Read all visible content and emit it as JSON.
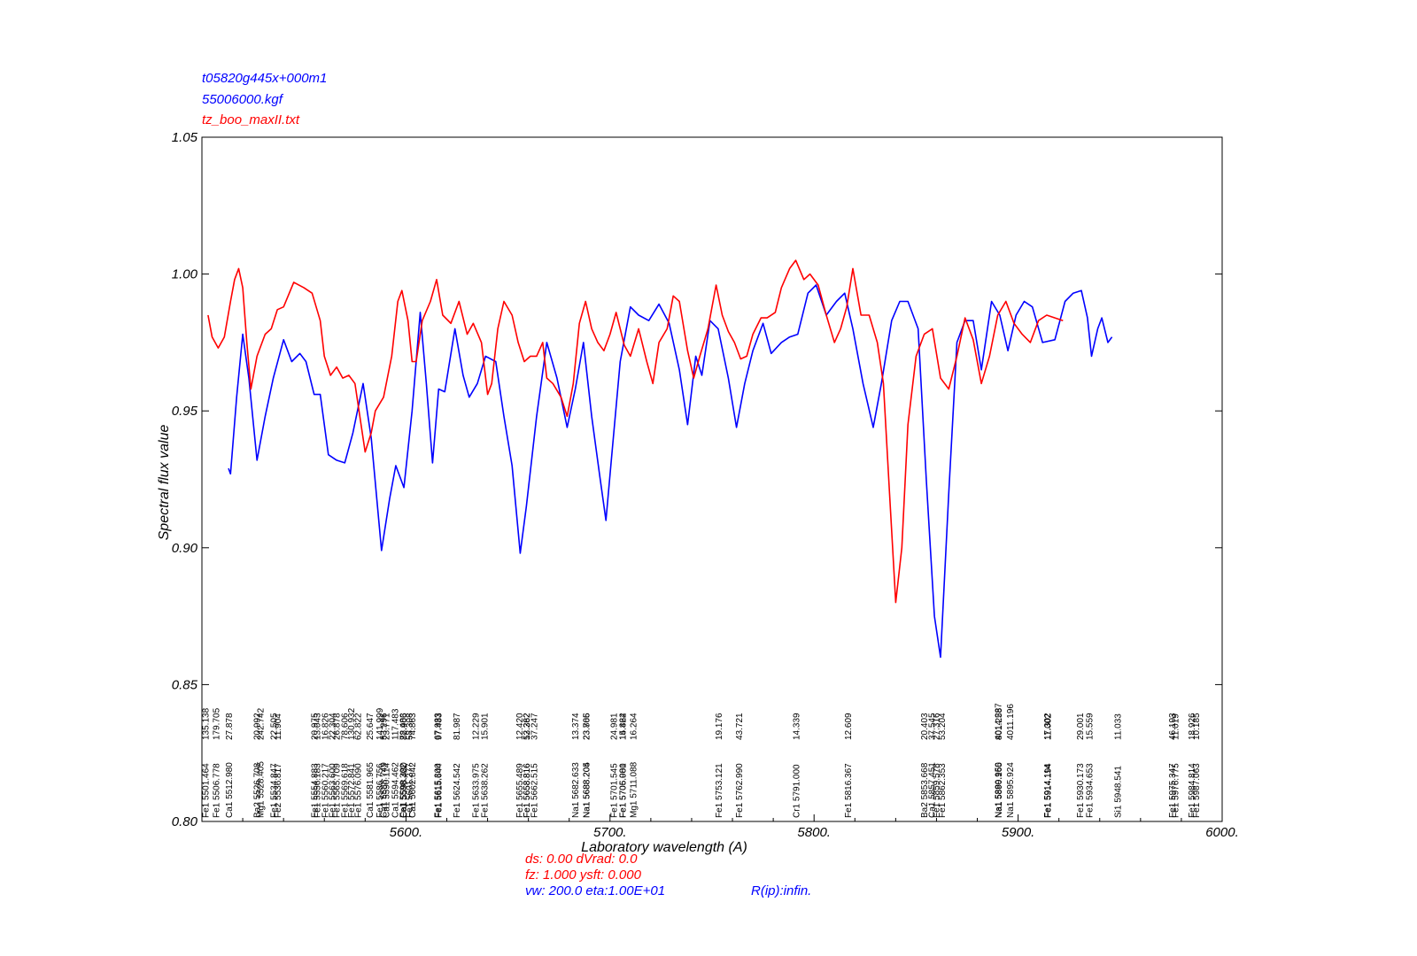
{
  "legend": {
    "model_name": "t05820g445x+000m1",
    "model_file": "55006000.kgf",
    "observed_file": "tz_boo_maxII.txt"
  },
  "colors": {
    "model": "#0000ff",
    "observed": "#ff0000",
    "axis": "#000000",
    "lines": "#000000"
  },
  "footer": {
    "line1": "ds:  0.00 dVrad:   0.0",
    "line2": "fz: 1.000  ysft: 0.000",
    "line3": "vw: 200.0 eta:1.00E+01",
    "resolution": "R(ip):infin."
  },
  "chart_data": {
    "type": "line",
    "xlabel": "Laboratory wavelength (A)",
    "ylabel": "Spectral flux value",
    "xlim": [
      5500,
      6000
    ],
    "ylim": [
      0.8,
      1.05
    ],
    "x_ticks": [
      5600,
      5700,
      5800,
      5900,
      6000
    ],
    "x_tick_labels": [
      "5600.",
      "5700.",
      "5800.",
      "5900.",
      "6000."
    ],
    "y_ticks": [
      0.8,
      0.85,
      0.9,
      0.95,
      1.0,
      1.05
    ],
    "y_tick_labels": [
      "0.80",
      "0.85",
      "0.90",
      "0.95",
      "1.00",
      "1.05"
    ],
    "series": [
      {
        "name": "t05820g445x+000m1",
        "color": "#0000ff",
        "points": [
          [
            5513,
            0.929
          ],
          [
            5514,
            0.927
          ],
          [
            5517,
            0.955
          ],
          [
            5520,
            0.978
          ],
          [
            5523,
            0.962
          ],
          [
            5527,
            0.932
          ],
          [
            5531,
            0.948
          ],
          [
            5535,
            0.962
          ],
          [
            5540,
            0.976
          ],
          [
            5544,
            0.968
          ],
          [
            5548,
            0.971
          ],
          [
            5551,
            0.968
          ],
          [
            5555,
            0.956
          ],
          [
            5558,
            0.956
          ],
          [
            5562,
            0.934
          ],
          [
            5566,
            0.932
          ],
          [
            5570,
            0.931
          ],
          [
            5574,
            0.942
          ],
          [
            5579,
            0.96
          ],
          [
            5583,
            0.94
          ],
          [
            5588,
            0.899
          ],
          [
            5592,
            0.918
          ],
          [
            5595,
            0.93
          ],
          [
            5599,
            0.922
          ],
          [
            5603,
            0.95
          ],
          [
            5607,
            0.986
          ],
          [
            5610,
            0.96
          ],
          [
            5613,
            0.931
          ],
          [
            5616,
            0.958
          ],
          [
            5619,
            0.957
          ],
          [
            5624,
            0.98
          ],
          [
            5628,
            0.963
          ],
          [
            5631,
            0.955
          ],
          [
            5635,
            0.96
          ],
          [
            5639,
            0.97
          ],
          [
            5644,
            0.968
          ],
          [
            5648,
            0.948
          ],
          [
            5652,
            0.93
          ],
          [
            5656,
            0.898
          ],
          [
            5659,
            0.915
          ],
          [
            5664,
            0.948
          ],
          [
            5669,
            0.975
          ],
          [
            5674,
            0.962
          ],
          [
            5679,
            0.944
          ],
          [
            5683,
            0.958
          ],
          [
            5687,
            0.975
          ],
          [
            5691,
            0.948
          ],
          [
            5695,
            0.926
          ],
          [
            5698,
            0.91
          ],
          [
            5701,
            0.935
          ],
          [
            5705,
            0.968
          ],
          [
            5710,
            0.988
          ],
          [
            5714,
            0.985
          ],
          [
            5719,
            0.983
          ],
          [
            5724,
            0.989
          ],
          [
            5729,
            0.982
          ],
          [
            5734,
            0.965
          ],
          [
            5738,
            0.945
          ],
          [
            5742,
            0.97
          ],
          [
            5745,
            0.963
          ],
          [
            5749,
            0.983
          ],
          [
            5753,
            0.98
          ],
          [
            5758,
            0.962
          ],
          [
            5762,
            0.944
          ],
          [
            5766,
            0.96
          ],
          [
            5770,
            0.972
          ],
          [
            5775,
            0.982
          ],
          [
            5779,
            0.971
          ],
          [
            5784,
            0.975
          ],
          [
            5788,
            0.977
          ],
          [
            5792,
            0.978
          ],
          [
            5797,
            0.993
          ],
          [
            5801,
            0.996
          ],
          [
            5806,
            0.985
          ],
          [
            5811,
            0.99
          ],
          [
            5815,
            0.993
          ],
          [
            5819,
            0.98
          ],
          [
            5824,
            0.96
          ],
          [
            5829,
            0.944
          ],
          [
            5833,
            0.96
          ],
          [
            5838,
            0.983
          ],
          [
            5842,
            0.99
          ],
          [
            5846,
            0.99
          ],
          [
            5851,
            0.98
          ],
          [
            5855,
            0.925
          ],
          [
            5859,
            0.875
          ],
          [
            5862,
            0.86
          ],
          [
            5866,
            0.92
          ],
          [
            5870,
            0.975
          ],
          [
            5874,
            0.983
          ],
          [
            5878,
            0.983
          ],
          [
            5882,
            0.965
          ],
          [
            5887,
            0.99
          ],
          [
            5891,
            0.985
          ],
          [
            5895,
            0.972
          ],
          [
            5899,
            0.985
          ],
          [
            5903,
            0.99
          ],
          [
            5907,
            0.988
          ],
          [
            5912,
            0.975
          ],
          [
            5918,
            0.976
          ],
          [
            5923,
            0.99
          ],
          [
            5927,
            0.993
          ],
          [
            5931,
            0.994
          ],
          [
            5934,
            0.984
          ],
          [
            5936,
            0.97
          ],
          [
            5939,
            0.98
          ],
          [
            5941,
            0.984
          ],
          [
            5944,
            0.975
          ],
          [
            5946,
            0.977
          ]
        ]
      },
      {
        "name": "tz_boo_maxII.txt",
        "color": "#ff0000",
        "points": [
          [
            5503,
            0.985
          ],
          [
            5505,
            0.977
          ],
          [
            5508,
            0.973
          ],
          [
            5511,
            0.977
          ],
          [
            5514,
            0.99
          ],
          [
            5516,
            0.998
          ],
          [
            5518,
            1.002
          ],
          [
            5520,
            0.995
          ],
          [
            5522,
            0.975
          ],
          [
            5524,
            0.958
          ],
          [
            5527,
            0.97
          ],
          [
            5531,
            0.978
          ],
          [
            5534,
            0.98
          ],
          [
            5537,
            0.987
          ],
          [
            5540,
            0.988
          ],
          [
            5545,
            0.997
          ],
          [
            5550,
            0.995
          ],
          [
            5554,
            0.993
          ],
          [
            5558,
            0.983
          ],
          [
            5560,
            0.97
          ],
          [
            5563,
            0.963
          ],
          [
            5566,
            0.966
          ],
          [
            5569,
            0.962
          ],
          [
            5572,
            0.963
          ],
          [
            5575,
            0.96
          ],
          [
            5578,
            0.945
          ],
          [
            5580,
            0.935
          ],
          [
            5583,
            0.942
          ],
          [
            5585,
            0.95
          ],
          [
            5589,
            0.955
          ],
          [
            5593,
            0.97
          ],
          [
            5596,
            0.99
          ],
          [
            5598,
            0.994
          ],
          [
            5601,
            0.983
          ],
          [
            5603,
            0.968
          ],
          [
            5605,
            0.968
          ],
          [
            5608,
            0.983
          ],
          [
            5612,
            0.99
          ],
          [
            5615,
            0.998
          ],
          [
            5618,
            0.985
          ],
          [
            5622,
            0.982
          ],
          [
            5626,
            0.99
          ],
          [
            5630,
            0.978
          ],
          [
            5633,
            0.982
          ],
          [
            5637,
            0.975
          ],
          [
            5640,
            0.956
          ],
          [
            5642,
            0.96
          ],
          [
            5645,
            0.98
          ],
          [
            5648,
            0.99
          ],
          [
            5652,
            0.985
          ],
          [
            5655,
            0.975
          ],
          [
            5658,
            0.968
          ],
          [
            5661,
            0.97
          ],
          [
            5664,
            0.97
          ],
          [
            5667,
            0.975
          ],
          [
            5669,
            0.962
          ],
          [
            5672,
            0.96
          ],
          [
            5676,
            0.955
          ],
          [
            5679,
            0.948
          ],
          [
            5682,
            0.96
          ],
          [
            5685,
            0.982
          ],
          [
            5688,
            0.99
          ],
          [
            5691,
            0.98
          ],
          [
            5694,
            0.975
          ],
          [
            5697,
            0.972
          ],
          [
            5700,
            0.978
          ],
          [
            5703,
            0.986
          ],
          [
            5707,
            0.974
          ],
          [
            5710,
            0.97
          ],
          [
            5714,
            0.98
          ],
          [
            5718,
            0.968
          ],
          [
            5721,
            0.96
          ],
          [
            5724,
            0.975
          ],
          [
            5728,
            0.98
          ],
          [
            5731,
            0.992
          ],
          [
            5734,
            0.99
          ],
          [
            5738,
            0.972
          ],
          [
            5741,
            0.962
          ],
          [
            5744,
            0.97
          ],
          [
            5748,
            0.98
          ],
          [
            5752,
            0.996
          ],
          [
            5755,
            0.985
          ],
          [
            5758,
            0.979
          ],
          [
            5761,
            0.975
          ],
          [
            5764,
            0.969
          ],
          [
            5767,
            0.97
          ],
          [
            5770,
            0.978
          ],
          [
            5774,
            0.984
          ],
          [
            5777,
            0.984
          ],
          [
            5781,
            0.986
          ],
          [
            5784,
            0.995
          ],
          [
            5788,
            1.002
          ],
          [
            5791,
            1.005
          ],
          [
            5795,
            0.998
          ],
          [
            5798,
            1.0
          ],
          [
            5802,
            0.996
          ],
          [
            5806,
            0.985
          ],
          [
            5810,
            0.975
          ],
          [
            5813,
            0.98
          ],
          [
            5816,
            0.988
          ],
          [
            5819,
            1.002
          ],
          [
            5823,
            0.985
          ],
          [
            5827,
            0.985
          ],
          [
            5831,
            0.975
          ],
          [
            5834,
            0.96
          ],
          [
            5837,
            0.92
          ],
          [
            5840,
            0.88
          ],
          [
            5843,
            0.9
          ],
          [
            5846,
            0.945
          ],
          [
            5850,
            0.97
          ],
          [
            5854,
            0.978
          ],
          [
            5858,
            0.98
          ],
          [
            5862,
            0.962
          ],
          [
            5866,
            0.958
          ],
          [
            5870,
            0.97
          ],
          [
            5874,
            0.984
          ],
          [
            5878,
            0.976
          ],
          [
            5882,
            0.96
          ],
          [
            5886,
            0.97
          ],
          [
            5890,
            0.985
          ],
          [
            5894,
            0.99
          ],
          [
            5898,
            0.982
          ],
          [
            5902,
            0.978
          ],
          [
            5906,
            0.975
          ],
          [
            5910,
            0.983
          ],
          [
            5914,
            0.985
          ],
          [
            5918,
            0.984
          ],
          [
            5922,
            0.983
          ]
        ]
      }
    ],
    "line_ids": [
      [
        "Fe1 5501.464",
        "135.138"
      ],
      [
        "Fe1 5506.778",
        "179.705"
      ],
      [
        "Ca1 5512.980",
        "27.878"
      ],
      [
        "Ba2 5526.708",
        "20.992"
      ],
      [
        "Mg1 5528.405",
        "242.742"
      ],
      [
        "Fe1 5534.847",
        "22.505"
      ],
      [
        "Fe2 5536.817",
        "11.904"
      ],
      [
        "Fe1 5554.883",
        "20.975"
      ],
      [
        "Fe1 5556.183",
        "13.043"
      ],
      [
        "Fe1 5560.217",
        "16.826"
      ],
      [
        "Fe1 5563.600",
        "22.304"
      ],
      [
        "Fe1 5565.709",
        "26.878"
      ],
      [
        "Fe1 5569.618",
        "78.606"
      ],
      [
        "Fe1 5572.841",
        "130.932"
      ],
      [
        "Fe1 5576.090",
        "62.822"
      ],
      [
        "Ca1 5581.965",
        "25.647"
      ],
      [
        "Ca1 5588.749",
        "53.296"
      ],
      [
        "Fe1 5586.756",
        "141.999"
      ],
      [
        "Ca1 5590.114",
        "23.771"
      ],
      [
        "Ca1 5594.462",
        "117.483"
      ],
      [
        "Ca1 5598.480",
        "82.906"
      ],
      [
        "Fe1 5598.302",
        "78.483"
      ],
      [
        "Fe1 5601.277",
        "58.308"
      ],
      [
        "Ca1 5602.842",
        "74.863"
      ],
      [
        "Fe1 5615.644",
        "97.483"
      ],
      [
        "Fe1 5615.300",
        "67.933"
      ],
      [
        "Fe1 5624.542",
        "81.987"
      ],
      [
        "Fe1 5633.975",
        "12.229"
      ],
      [
        "Fe1 5638.262",
        "15.901"
      ],
      [
        "Fe1 5655.489",
        "12.420"
      ],
      [
        "Fe1 5658.816",
        "53.262"
      ],
      [
        "Fe1 5658.816",
        "12.382"
      ],
      [
        "Fe1 5662.515",
        "37.247"
      ],
      [
        "Na1 5682.633",
        "13.374"
      ],
      [
        "Na1 5688.204",
        "23.806"
      ],
      [
        "Na1 5688.205",
        "23.765"
      ],
      [
        "Fe1 5701.545",
        "24.981"
      ],
      [
        "Fe1 5705.981",
        "15.422"
      ],
      [
        "Fe1 5706.000",
        "14.864"
      ],
      [
        "Mg1 5711.088",
        "16.264"
      ],
      [
        "Fe1 5753.121",
        "19.176"
      ],
      [
        "Fe1 5762.990",
        "43.721"
      ],
      [
        "Cr1 5791.000",
        "14.339"
      ],
      [
        "Fe1 5816.367",
        "12.609"
      ],
      [
        "Ba2 5853.668",
        "20.403"
      ],
      [
        "Ca1 5857.451",
        "37.545"
      ],
      [
        "Fe1 5859.578",
        "27.316"
      ],
      [
        "Fe1 5862.353",
        "53.204"
      ],
      [
        "Na1 5889.950",
        "4014.287"
      ],
      [
        "Na1 5890.165",
        "801.258"
      ],
      [
        "Na1 5895.924",
        "4011.196"
      ],
      [
        "Fe1 5914.194",
        "11.002"
      ],
      [
        "Fe1 5914.114",
        "17.302"
      ],
      [
        "Fe1 5930.173",
        "29.001"
      ],
      [
        "Fe1 5934.653",
        "15.559"
      ],
      [
        "Si1 5948.541",
        "11.033"
      ],
      [
        "Fe1 5975.347",
        "46.193"
      ],
      [
        "Fe1 5976.775",
        "11.019"
      ],
      [
        "Fe1 5984.814",
        "18.926"
      ],
      [
        "Fe1 5987.063",
        "10.185"
      ]
    ]
  }
}
